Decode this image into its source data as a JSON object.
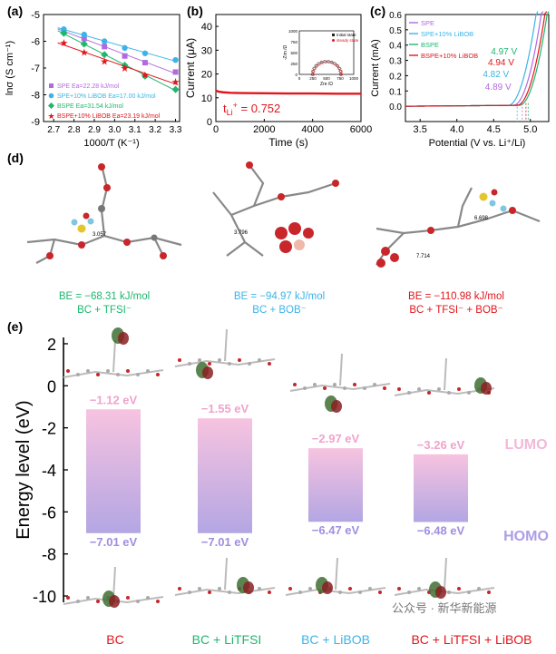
{
  "panels": {
    "a": "(a)",
    "b": "(b)",
    "c": "(c)",
    "d": "(d)",
    "e": "(e)"
  },
  "colors": {
    "spe": "#b26ae0",
    "spe_libob": "#3cb4e8",
    "bspe": "#1db76e",
    "bspe_libob": "#e0161b",
    "bc": "#e0161b",
    "lumo": "#f2a8cf",
    "homo": "#a593e0"
  },
  "chart_data": [
    {
      "type": "scatter",
      "panel": "a",
      "title": "",
      "xlabel": "1000/T (K⁻¹)",
      "ylabel": "lnσ (S cm⁻¹)",
      "xlim": [
        2.65,
        3.32
      ],
      "ylim": [
        -9,
        -5
      ],
      "xticks": [
        2.7,
        2.8,
        2.9,
        3.0,
        3.1,
        3.2,
        3.3
      ],
      "xtick_labels": [
        "2.7",
        "2.8",
        "2.9",
        "3.0",
        "3.1",
        "3.2",
        "3.3"
      ],
      "yticks": [
        -9,
        -8,
        -7,
        -6,
        -5
      ],
      "ytick_labels": [
        "-9",
        "-8",
        "-7",
        "-6",
        "-5"
      ],
      "series": [
        {
          "name": "SPE",
          "label": "SPE   Ea=22.28 kJ/mol",
          "color": "#b26ae0",
          "marker": "square",
          "x": [
            2.75,
            2.85,
            2.95,
            3.05,
            3.15,
            3.3
          ],
          "y": [
            -5.6,
            -5.9,
            -6.2,
            -6.55,
            -6.8,
            -7.15
          ]
        },
        {
          "name": "SPE+10% LiBOB",
          "label": "SPE+10% LiBOB  Ea=17.00 kJ/mol",
          "color": "#3cb4e8",
          "marker": "circle",
          "x": [
            2.75,
            2.85,
            2.95,
            3.05,
            3.15,
            3.3
          ],
          "y": [
            -5.55,
            -5.75,
            -6.0,
            -6.25,
            -6.45,
            -6.7
          ]
        },
        {
          "name": "BSPE",
          "label": "BSPE   Ea=31.54 kJ/mol",
          "color": "#1db76e",
          "marker": "diamond",
          "x": [
            2.75,
            2.85,
            2.95,
            3.05,
            3.15,
            3.3
          ],
          "y": [
            -5.7,
            -6.1,
            -6.5,
            -6.9,
            -7.3,
            -7.8
          ]
        },
        {
          "name": "BSPE+10% LiBOB",
          "label": "BSPE+10% LiBOB  Ea=23.19 kJ/mol",
          "color": "#e0161b",
          "marker": "star",
          "x": [
            2.75,
            2.85,
            2.95,
            3.05,
            3.15,
            3.3
          ],
          "y": [
            -6.05,
            -6.4,
            -6.75,
            -7.0,
            -7.25,
            -7.5
          ]
        }
      ]
    },
    {
      "type": "line",
      "panel": "b",
      "xlabel": "Time (s)",
      "ylabel": "Current (μA)",
      "xlim": [
        0,
        6000
      ],
      "ylim": [
        0,
        45
      ],
      "xticks": [
        0,
        2000,
        4000,
        6000
      ],
      "xtick_labels": [
        "0",
        "2000",
        "4000",
        "6000"
      ],
      "yticks": [
        0,
        10,
        20,
        30,
        40
      ],
      "ytick_labels": [
        "0",
        "10",
        "20",
        "30",
        "40"
      ],
      "series": [
        {
          "name": "current",
          "color": "#e0161b",
          "x": [
            0,
            100,
            300,
            600,
            1000,
            2000,
            3000,
            4000,
            5000,
            6000
          ],
          "y": [
            13.0,
            12.6,
            12.3,
            12.1,
            12.0,
            11.9,
            11.8,
            11.8,
            11.7,
            11.7
          ]
        }
      ],
      "annotation": "t",
      "annotation_sub": "Li",
      "annotation_sup": "+",
      "annotation_value": " = 0.752",
      "inset": {
        "xlabel": "Zre /Ω",
        "ylabel": "-Zim /Ω",
        "xticks": [
          "0",
          "250",
          "500",
          "750",
          "1000"
        ],
        "yticks": [
          "0",
          "250",
          "500",
          "750",
          "1000"
        ],
        "legend": [
          "Initial state",
          "steady state"
        ]
      }
    },
    {
      "type": "line",
      "panel": "c",
      "xlabel": "Potential (V vs. Li⁺/Li)",
      "ylabel": "Current (mA)",
      "xlim": [
        3.3,
        5.25
      ],
      "ylim": [
        -0.1,
        0.6
      ],
      "xticks": [
        3.5,
        4.0,
        4.5,
        5.0
      ],
      "xtick_labels": [
        "3.5",
        "4.0",
        "4.5",
        "5.0"
      ],
      "yticks": [
        0.0,
        0.1,
        0.2,
        0.3,
        0.4,
        0.5,
        0.6
      ],
      "ytick_labels": [
        "0.0",
        "0.1",
        "0.2",
        "0.3",
        "0.4",
        "0.5",
        "0.6"
      ],
      "series": [
        {
          "name": "SPE",
          "color": "#b26ae0",
          "onset": 4.89,
          "onset_label": "4.89 V"
        },
        {
          "name": "SPE+10% LiBOB",
          "color": "#3cb4e8",
          "onset": 4.82,
          "onset_label": "4.82 V"
        },
        {
          "name": "BSPE",
          "color": "#1db76e",
          "onset": 4.97,
          "onset_label": "4.97 V"
        },
        {
          "name": "BSPE+10% LiBOB",
          "color": "#e0161b",
          "onset": 4.94,
          "onset_label": "4.94 V"
        }
      ]
    },
    {
      "type": "bar",
      "panel": "e",
      "ylabel": "Energy level (eV)",
      "ylim": [
        -10.3,
        2.3
      ],
      "yticks": [
        -10,
        -8,
        -6,
        -4,
        -2,
        0,
        2
      ],
      "ytick_labels": [
        "-10",
        "-8",
        "-6",
        "-4",
        "-2",
        "0",
        "2"
      ],
      "categories": [
        "BC",
        "BC + LiTFSI",
        "BC + LiBOB",
        "BC + LiTFSI + LiBOB"
      ],
      "series": [
        {
          "name": "LUMO",
          "values": [
            -1.12,
            -1.55,
            -2.97,
            -3.26
          ],
          "labels": [
            "−1.12 eV",
            "−1.55 eV",
            "−2.97 eV",
            "−3.26 eV"
          ]
        },
        {
          "name": "HOMO",
          "values": [
            -7.01,
            -7.01,
            -6.47,
            -6.48
          ],
          "labels": [
            "−7.01 eV",
            "−7.01 eV",
            "−6.47 eV",
            "−6.48 eV"
          ]
        }
      ],
      "legend_lumo": "LUMO",
      "legend_homo": "HOMO"
    }
  ],
  "panel_d": {
    "distances": [
      "3.057",
      "3.796",
      "6.698",
      "7.714"
    ],
    "be": [
      {
        "line1": "BE = −68.31 kJ/mol",
        "line2": "BC + TFSI⁻",
        "color": "#1db76e"
      },
      {
        "line1": "BE = −94.97 kJ/mol",
        "line2": "BC + BOB⁻",
        "color": "#3cb4e8"
      },
      {
        "line1": "BE = −110.98 kJ/mol",
        "line2": "BC + TFSI⁻ + BOB⁻",
        "color": "#e0161b"
      }
    ]
  },
  "bottom_labels": [
    {
      "text": "BC",
      "color": "#e0161b"
    },
    {
      "text": "BC + LiTFSI",
      "color": "#1db76e"
    },
    {
      "text": "BC + LiBOB",
      "color": "#3cb4e8"
    },
    {
      "text": "BC + LiTFSI + LiBOB",
      "color": "#e0161b"
    }
  ],
  "watermark": "公众号 · 新华新能源"
}
